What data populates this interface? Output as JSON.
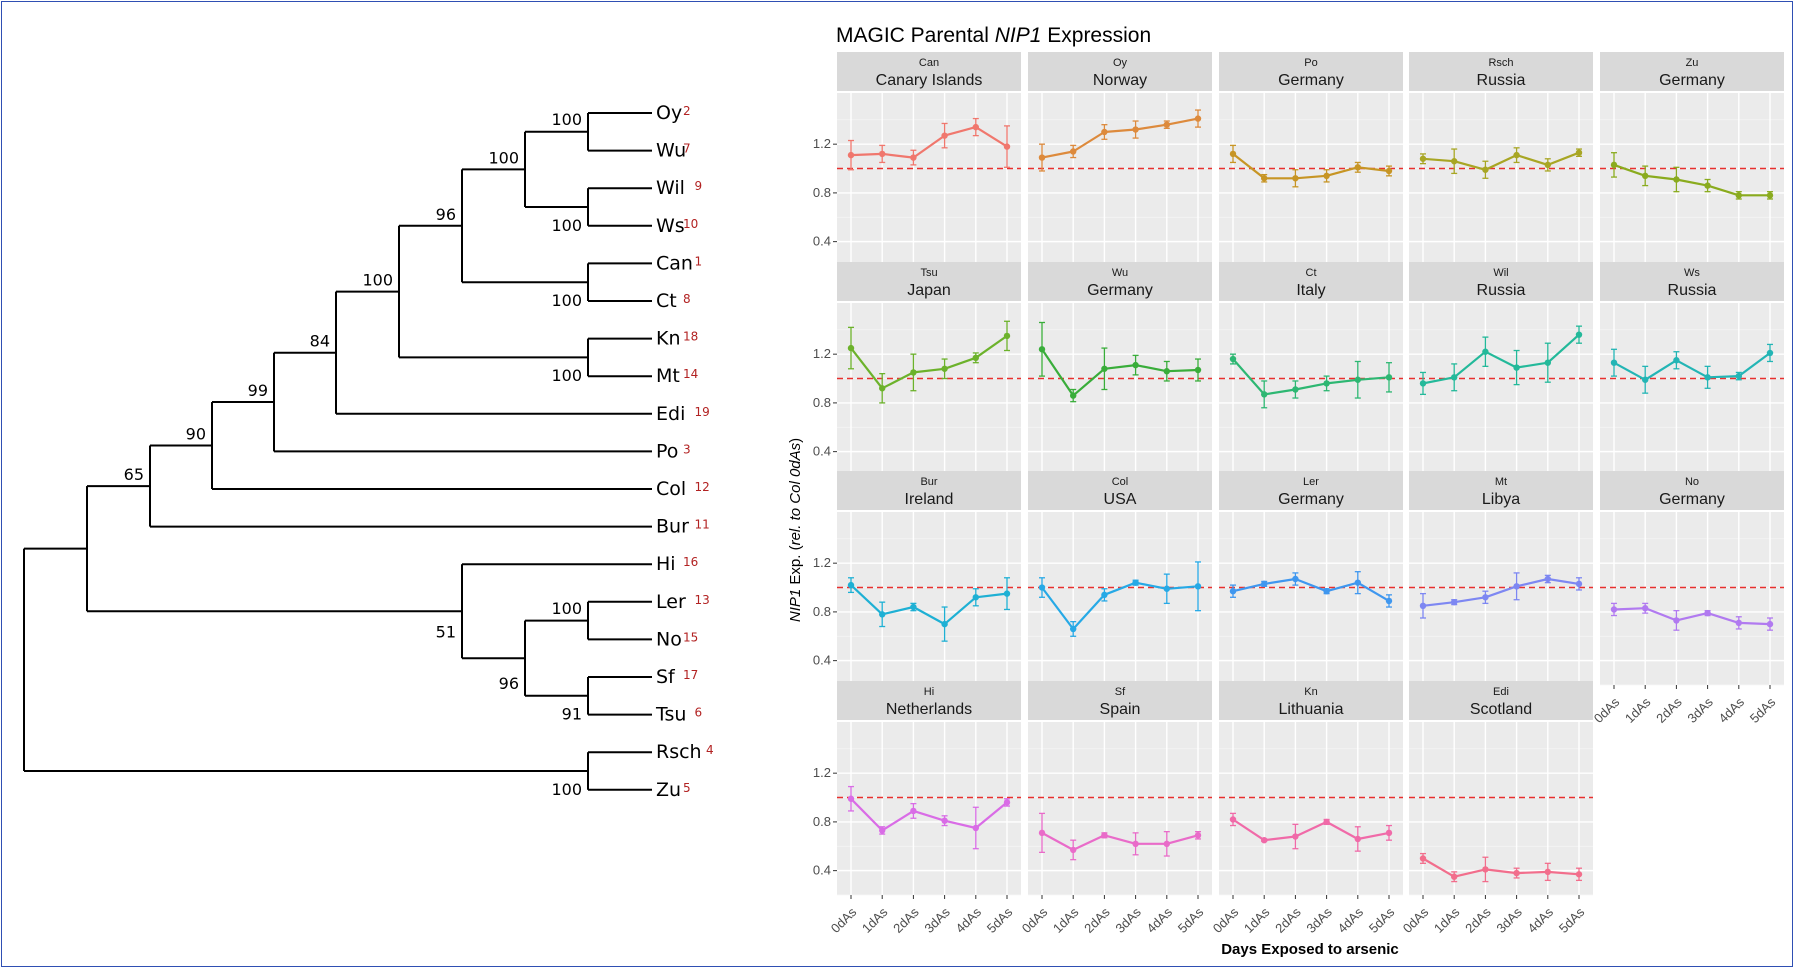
{
  "tree": {
    "tips": [
      {
        "name": "Oy",
        "num": "2"
      },
      {
        "name": "Wu",
        "num": "7"
      },
      {
        "name": "Wil",
        "num": "9"
      },
      {
        "name": "Ws",
        "num": "10"
      },
      {
        "name": "Can",
        "num": "1"
      },
      {
        "name": "Ct",
        "num": "8"
      },
      {
        "name": "Kn",
        "num": "18"
      },
      {
        "name": "Mt",
        "num": "14"
      },
      {
        "name": "Edi",
        "num": "19"
      },
      {
        "name": "Po",
        "num": "3"
      },
      {
        "name": "Col",
        "num": "12"
      },
      {
        "name": "Bur",
        "num": "11"
      },
      {
        "name": "Hi",
        "num": "16"
      },
      {
        "name": "Ler",
        "num": "13"
      },
      {
        "name": "No",
        "num": "15"
      },
      {
        "name": "Sf",
        "num": "17"
      },
      {
        "name": "Tsu",
        "num": "6"
      },
      {
        "name": "Rsch",
        "num": "4"
      },
      {
        "name": "Zu",
        "num": "5"
      }
    ],
    "bootstrap": [
      "100",
      "100",
      "100",
      "96",
      "100",
      "100",
      "100",
      "84",
      "99",
      "90",
      "65",
      "100",
      "51",
      "96",
      "91",
      "100"
    ]
  },
  "chart_data": {
    "type": "line",
    "title_prefix": "MAGIC Parental ",
    "title_gene": "NIP1",
    "title_suffix": " Expression",
    "xlabel": "Days Exposed to arsenic",
    "ylabel_gene": "NIP1",
    "ylabel_mid": " Exp.  (",
    "ylabel_italic": "rel. to Col 0dAs",
    "ylabel_end": ")",
    "categories": [
      "0dAs",
      "1dAs",
      "2dAs",
      "3dAs",
      "4dAs",
      "5dAs"
    ],
    "yticks": [
      "0.4",
      "0.8",
      "1.2"
    ],
    "ylim": [
      0.2,
      1.62
    ],
    "reference_line": 1.0,
    "panels": [
      {
        "code": "Can",
        "country": "Canary Islands",
        "color": "#f0776d",
        "values": [
          1.11,
          1.12,
          1.09,
          1.27,
          1.34,
          1.18
        ],
        "errors": [
          0.12,
          0.07,
          0.06,
          0.1,
          0.07,
          0.17
        ]
      },
      {
        "code": "Oy",
        "country": "Norway",
        "color": "#dd8a3c",
        "values": [
          1.09,
          1.14,
          1.3,
          1.32,
          1.36,
          1.41
        ],
        "errors": [
          0.11,
          0.05,
          0.06,
          0.07,
          0.03,
          0.07
        ]
      },
      {
        "code": "Po",
        "country": "Germany",
        "color": "#c79524",
        "values": [
          1.12,
          0.92,
          0.92,
          0.94,
          1.01,
          0.98
        ],
        "errors": [
          0.07,
          0.03,
          0.07,
          0.05,
          0.04,
          0.04
        ]
      },
      {
        "code": "Rsch",
        "country": "Russia",
        "color": "#a8a624",
        "values": [
          1.08,
          1.06,
          0.99,
          1.11,
          1.03,
          1.13
        ],
        "errors": [
          0.04,
          0.1,
          0.07,
          0.06,
          0.05,
          0.03
        ]
      },
      {
        "code": "Zu",
        "country": "Germany",
        "color": "#8aab1e",
        "values": [
          1.03,
          0.94,
          0.91,
          0.86,
          0.78,
          0.78
        ],
        "errors": [
          0.1,
          0.08,
          0.1,
          0.05,
          0.03,
          0.03
        ]
      },
      {
        "code": "Tsu",
        "country": "Japan",
        "color": "#6cb22b",
        "values": [
          1.25,
          0.92,
          1.05,
          1.08,
          1.17,
          1.35
        ],
        "errors": [
          0.17,
          0.12,
          0.15,
          0.08,
          0.04,
          0.12
        ]
      },
      {
        "code": "Wu",
        "country": "Germany",
        "color": "#39ad3a",
        "values": [
          1.24,
          0.86,
          1.08,
          1.11,
          1.06,
          1.07
        ],
        "errors": [
          0.22,
          0.05,
          0.17,
          0.08,
          0.08,
          0.09
        ]
      },
      {
        "code": "Ct",
        "country": "Italy",
        "color": "#2db772",
        "values": [
          1.16,
          0.87,
          0.91,
          0.96,
          0.99,
          1.01
        ],
        "errors": [
          0.04,
          0.11,
          0.07,
          0.06,
          0.15,
          0.12
        ]
      },
      {
        "code": "Wil",
        "country": "Russia",
        "color": "#23b99a",
        "values": [
          0.96,
          1.01,
          1.22,
          1.09,
          1.13,
          1.36
        ],
        "errors": [
          0.09,
          0.11,
          0.12,
          0.14,
          0.16,
          0.07
        ]
      },
      {
        "code": "Ws",
        "country": "Russia",
        "color": "#23b5b5",
        "values": [
          1.13,
          0.99,
          1.15,
          1.01,
          1.02,
          1.21
        ],
        "errors": [
          0.11,
          0.11,
          0.07,
          0.09,
          0.03,
          0.07
        ]
      },
      {
        "code": "Bur",
        "country": "Ireland",
        "color": "#1eb0d4",
        "values": [
          1.02,
          0.78,
          0.84,
          0.7,
          0.92,
          0.95
        ],
        "errors": [
          0.06,
          0.1,
          0.03,
          0.14,
          0.07,
          0.13
        ]
      },
      {
        "code": "Col",
        "country": "USA",
        "color": "#26a9e6",
        "values": [
          1.0,
          0.66,
          0.94,
          1.04,
          0.99,
          1.01
        ],
        "errors": [
          0.08,
          0.06,
          0.05,
          0.02,
          0.12,
          0.2
        ]
      },
      {
        "code": "Ler",
        "country": "Germany",
        "color": "#3f97ef",
        "values": [
          0.97,
          1.03,
          1.07,
          0.97,
          1.04,
          0.89
        ],
        "errors": [
          0.05,
          0.02,
          0.05,
          0.02,
          0.09,
          0.05
        ]
      },
      {
        "code": "Mt",
        "country": "Libya",
        "color": "#7d87f2",
        "values": [
          0.85,
          0.88,
          0.92,
          1.01,
          1.07,
          1.03
        ],
        "errors": [
          0.1,
          0.02,
          0.05,
          0.11,
          0.03,
          0.05
        ]
      },
      {
        "code": "No",
        "country": "Germany",
        "color": "#b17af0",
        "values": [
          0.82,
          0.83,
          0.73,
          0.79,
          0.71,
          0.7
        ],
        "errors": [
          0.05,
          0.04,
          0.08,
          0.02,
          0.05,
          0.05
        ]
      },
      {
        "code": "Hi",
        "country": "Netherlands",
        "color": "#d96ce6",
        "values": [
          0.99,
          0.73,
          0.89,
          0.81,
          0.75,
          0.96
        ],
        "errors": [
          0.1,
          0.03,
          0.06,
          0.04,
          0.17,
          0.03
        ]
      },
      {
        "code": "Sf",
        "country": "Spain",
        "color": "#e96bc9",
        "values": [
          0.71,
          0.57,
          0.69,
          0.62,
          0.62,
          0.69
        ],
        "errors": [
          0.16,
          0.08,
          0.02,
          0.09,
          0.1,
          0.03
        ]
      },
      {
        "code": "Kn",
        "country": "Lithuania",
        "color": "#f06aa8",
        "values": [
          0.82,
          0.65,
          0.68,
          0.8,
          0.66,
          0.71
        ],
        "errors": [
          0.05,
          0.01,
          0.1,
          0.02,
          0.1,
          0.06
        ]
      },
      {
        "code": "Edi",
        "country": "Scotland",
        "color": "#f26e8c",
        "values": [
          0.5,
          0.35,
          0.41,
          0.38,
          0.39,
          0.37
        ],
        "errors": [
          0.04,
          0.04,
          0.1,
          0.04,
          0.07,
          0.05
        ]
      }
    ]
  }
}
